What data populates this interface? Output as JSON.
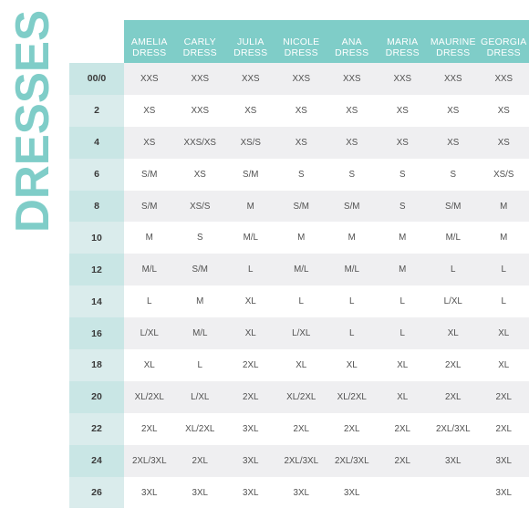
{
  "title": "DRESSES",
  "accent_color": "#7fcdc8",
  "columns": [
    [
      "AMELIA",
      "DRESS"
    ],
    [
      "CARLY",
      "DRESS"
    ],
    [
      "JULIA",
      "DRESS"
    ],
    [
      "NICOLE",
      "DRESS"
    ],
    [
      "ANA",
      "DRESS"
    ],
    [
      "MARIA",
      "DRESS"
    ],
    [
      "MAURINE",
      "DRESS"
    ],
    [
      "GEORGIA",
      "DRESS"
    ]
  ],
  "rows": [
    {
      "size": "00/0",
      "values": [
        "XXS",
        "XXS",
        "XXS",
        "XXS",
        "XXS",
        "XXS",
        "XXS",
        "XXS"
      ]
    },
    {
      "size": "2",
      "values": [
        "XS",
        "XXS",
        "XS",
        "XS",
        "XS",
        "XS",
        "XS",
        "XS"
      ]
    },
    {
      "size": "4",
      "values": [
        "XS",
        "XXS/XS",
        "XS/S",
        "XS",
        "XS",
        "XS",
        "XS",
        "XS"
      ]
    },
    {
      "size": "6",
      "values": [
        "S/M",
        "XS",
        "S/M",
        "S",
        "S",
        "S",
        "S",
        "XS/S"
      ]
    },
    {
      "size": "8",
      "values": [
        "S/M",
        "XS/S",
        "M",
        "S/M",
        "S/M",
        "S",
        "S/M",
        "M"
      ]
    },
    {
      "size": "10",
      "values": [
        "M",
        "S",
        "M/L",
        "M",
        "M",
        "M",
        "M/L",
        "M"
      ]
    },
    {
      "size": "12",
      "values": [
        "M/L",
        "S/M",
        "L",
        "M/L",
        "M/L",
        "M",
        "L",
        "L"
      ]
    },
    {
      "size": "14",
      "values": [
        "L",
        "M",
        "XL",
        "L",
        "L",
        "L",
        "L/XL",
        "L"
      ]
    },
    {
      "size": "16",
      "values": [
        "L/XL",
        "M/L",
        "XL",
        "L/XL",
        "L",
        "L",
        "XL",
        "XL"
      ]
    },
    {
      "size": "18",
      "values": [
        "XL",
        "L",
        "2XL",
        "XL",
        "XL",
        "XL",
        "2XL",
        "XL"
      ]
    },
    {
      "size": "20",
      "values": [
        "XL/2XL",
        "L/XL",
        "2XL",
        "XL/2XL",
        "XL/2XL",
        "XL",
        "2XL",
        "2XL"
      ]
    },
    {
      "size": "22",
      "values": [
        "2XL",
        "XL/2XL",
        "3XL",
        "2XL",
        "2XL",
        "2XL",
        "2XL/3XL",
        "2XL"
      ]
    },
    {
      "size": "24",
      "values": [
        "2XL/3XL",
        "2XL",
        "3XL",
        "2XL/3XL",
        "2XL/3XL",
        "2XL",
        "3XL",
        "3XL"
      ]
    },
    {
      "size": "26",
      "values": [
        "3XL",
        "3XL",
        "3XL",
        "3XL",
        "3XL",
        "",
        "",
        "3XL"
      ]
    }
  ]
}
